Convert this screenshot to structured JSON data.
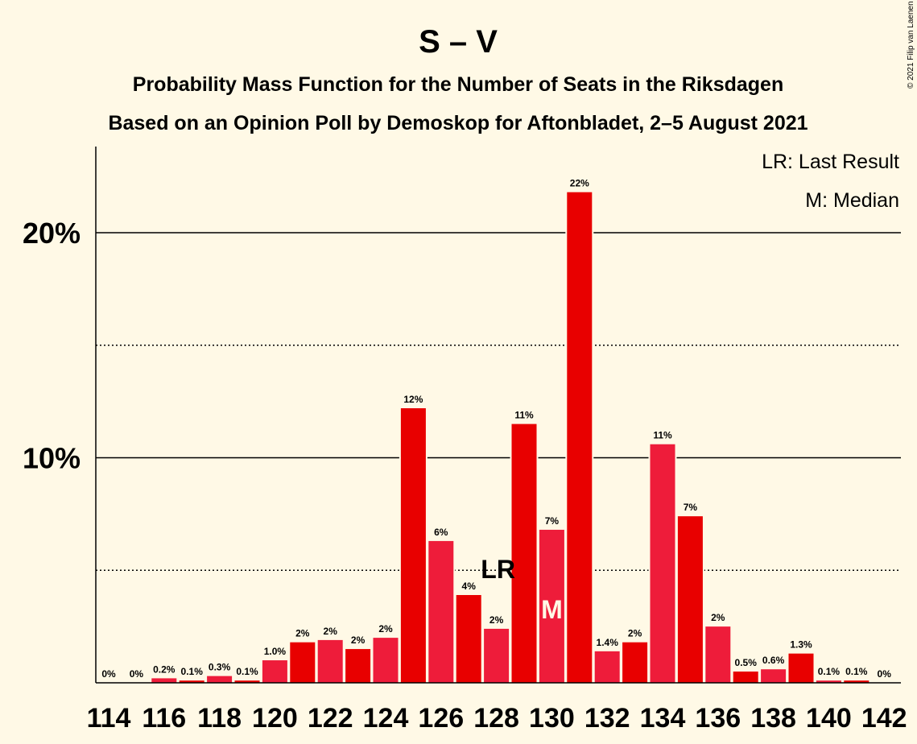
{
  "chart_data": {
    "type": "bar",
    "title": "S – V",
    "subtitle": "Probability Mass Function for the Number of Seats in the Riksdagen",
    "subtitle2": "Based on an Opinion Poll by Demoskop for Aftonbladet, 2–5 August 2021",
    "copyright": "© 2021 Filip van Laenen",
    "categories": [
      114,
      115,
      116,
      117,
      118,
      119,
      120,
      121,
      122,
      123,
      124,
      125,
      126,
      127,
      128,
      129,
      130,
      131,
      132,
      133,
      134,
      135,
      136,
      137,
      138,
      139,
      140,
      141,
      142
    ],
    "values": [
      0,
      0,
      0.2,
      0.1,
      0.3,
      0.1,
      1.0,
      1.8,
      1.9,
      1.5,
      2.0,
      12.2,
      6.3,
      3.9,
      2.4,
      11.5,
      6.8,
      21.8,
      1.4,
      1.8,
      10.6,
      7.4,
      2.5,
      0.5,
      0.6,
      1.3,
      0.1,
      0.1,
      0
    ],
    "labels": [
      "0%",
      "0%",
      "0.2%",
      "0.1%",
      "0.3%",
      "0.1%",
      "1.0%",
      "2%",
      "2%",
      "2%",
      "2%",
      "12%",
      "6%",
      "4%",
      "2%",
      "11%",
      "7%",
      "22%",
      "1.4%",
      "2%",
      "11%",
      "7%",
      "2%",
      "0.5%",
      "0.6%",
      "1.3%",
      "0.1%",
      "0.1%",
      "0%"
    ],
    "xtick_labels": [
      "114",
      "116",
      "118",
      "120",
      "122",
      "124",
      "126",
      "128",
      "130",
      "132",
      "134",
      "136",
      "138",
      "140",
      "142"
    ],
    "yticks": [
      {
        "value": 10,
        "label": "10%"
      },
      {
        "value": 20,
        "label": "20%"
      }
    ],
    "dotted_gridlines": [
      5,
      15
    ],
    "ylim": [
      0,
      23.8
    ],
    "last_result": {
      "seat": 128,
      "marker": "LR"
    },
    "median": {
      "seat": 130,
      "marker": "M"
    },
    "legend": {
      "position": "top-right",
      "items": [
        "LR: Last Result",
        "M: Median"
      ]
    },
    "colors": {
      "background": "#FFF9E6",
      "bar_dark": "#E80000",
      "bar_light": "#EE1C3A",
      "median_text": "#FFF9E6",
      "axis": "#000000"
    },
    "grid": true
  }
}
